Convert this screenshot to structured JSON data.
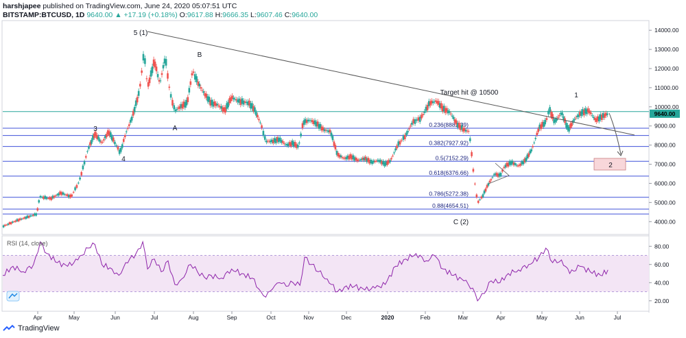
{
  "header": {
    "author": "harshjapee",
    "published_text": " published on TradingView.com, June 24, 2020 05:07:51 UTC",
    "symbol": "BITSTAMP:BTCUSD, 1D",
    "last": "9640.00",
    "change": "▲ +17.19 (+0.18%)",
    "o_label": "O:",
    "o_value": "9617.88",
    "h_label": "H:",
    "h_value": "9666.35",
    "l_label": "L:",
    "l_value": "9607.46",
    "c_label": "C:",
    "c_value": "9640.00"
  },
  "footer": {
    "brand": "TradingView",
    "brand_icon": "tradingview-logo-icon"
  },
  "colors": {
    "up": "#26a69a",
    "down": "#ef5350",
    "hline": "#3f51d9",
    "rsi_line": "#8e24aa",
    "rsi_band": "#f3e5f5"
  },
  "chart_data": [
    {
      "type": "candlestick",
      "y_ticks": [
        "14000.00",
        "13000.00",
        "12000.00",
        "11000.00",
        "10000.00",
        "9000.00",
        "8000.00",
        "7000.00",
        "6000.00",
        "5000.00",
        "4000.00"
      ],
      "ylim": [
        3400,
        14400
      ],
      "x_ticks": [
        "Apr",
        "May",
        "Jun",
        "Jul",
        "Aug",
        "Sep",
        "Oct",
        "Nov",
        "Dec",
        "2020",
        "Feb",
        "Mar",
        "Apr",
        "May",
        "Jun",
        "Jul"
      ],
      "price_label": "9640.00",
      "close_series": [
        {
          "d": 0,
          "v": 3750
        },
        {
          "d": 20,
          "v": 4050
        },
        {
          "d": 50,
          "v": 4400
        },
        {
          "d": 54,
          "v": 5300
        },
        {
          "d": 70,
          "v": 5200
        },
        {
          "d": 85,
          "v": 5500
        },
        {
          "d": 100,
          "v": 5300
        },
        {
          "d": 112,
          "v": 6100
        },
        {
          "d": 125,
          "v": 7800
        },
        {
          "d": 135,
          "v": 8600
        },
        {
          "d": 145,
          "v": 8100
        },
        {
          "d": 155,
          "v": 8700
        },
        {
          "d": 163,
          "v": 8200
        },
        {
          "d": 172,
          "v": 7600
        },
        {
          "d": 180,
          "v": 8600
        },
        {
          "d": 190,
          "v": 9500
        },
        {
          "d": 200,
          "v": 10800
        },
        {
          "d": 207,
          "v": 12900
        },
        {
          "d": 212,
          "v": 11000
        },
        {
          "d": 222,
          "v": 12400
        },
        {
          "d": 230,
          "v": 11200
        },
        {
          "d": 238,
          "v": 12600
        },
        {
          "d": 245,
          "v": 10700
        },
        {
          "d": 252,
          "v": 9800
        },
        {
          "d": 260,
          "v": 10000
        },
        {
          "d": 270,
          "v": 10200
        },
        {
          "d": 278,
          "v": 11900
        },
        {
          "d": 285,
          "v": 11300
        },
        {
          "d": 295,
          "v": 10700
        },
        {
          "d": 305,
          "v": 10200
        },
        {
          "d": 315,
          "v": 10100
        },
        {
          "d": 325,
          "v": 9800
        },
        {
          "d": 335,
          "v": 10500
        },
        {
          "d": 345,
          "v": 10300
        },
        {
          "d": 360,
          "v": 10200
        },
        {
          "d": 368,
          "v": 9900
        },
        {
          "d": 378,
          "v": 9100
        },
        {
          "d": 385,
          "v": 8200
        },
        {
          "d": 395,
          "v": 8200
        },
        {
          "d": 405,
          "v": 8300
        },
        {
          "d": 415,
          "v": 8000
        },
        {
          "d": 425,
          "v": 8100
        },
        {
          "d": 433,
          "v": 7900
        },
        {
          "d": 440,
          "v": 9200
        },
        {
          "d": 450,
          "v": 9300
        },
        {
          "d": 460,
          "v": 9100
        },
        {
          "d": 470,
          "v": 8800
        },
        {
          "d": 480,
          "v": 8700
        },
        {
          "d": 490,
          "v": 7500
        },
        {
          "d": 500,
          "v": 7300
        },
        {
          "d": 510,
          "v": 7400
        },
        {
          "d": 520,
          "v": 7200
        },
        {
          "d": 530,
          "v": 7300
        },
        {
          "d": 540,
          "v": 7100
        },
        {
          "d": 550,
          "v": 7200
        },
        {
          "d": 560,
          "v": 7000
        },
        {
          "d": 568,
          "v": 7200
        },
        {
          "d": 578,
          "v": 8000
        },
        {
          "d": 590,
          "v": 8500
        },
        {
          "d": 600,
          "v": 9200
        },
        {
          "d": 612,
          "v": 9400
        },
        {
          "d": 625,
          "v": 10200
        },
        {
          "d": 635,
          "v": 10300
        },
        {
          "d": 645,
          "v": 9900
        },
        {
          "d": 655,
          "v": 9700
        },
        {
          "d": 665,
          "v": 9100
        },
        {
          "d": 675,
          "v": 8800
        },
        {
          "d": 683,
          "v": 8700
        },
        {
          "d": 690,
          "v": 6300
        },
        {
          "d": 695,
          "v": 5000
        },
        {
          "d": 702,
          "v": 5300
        },
        {
          "d": 710,
          "v": 5900
        },
        {
          "d": 720,
          "v": 6500
        },
        {
          "d": 728,
          "v": 6400
        },
        {
          "d": 735,
          "v": 6900
        },
        {
          "d": 745,
          "v": 7100
        },
        {
          "d": 755,
          "v": 6900
        },
        {
          "d": 765,
          "v": 7200
        },
        {
          "d": 775,
          "v": 7800
        },
        {
          "d": 785,
          "v": 8900
        },
        {
          "d": 795,
          "v": 9200
        },
        {
          "d": 800,
          "v": 9900
        },
        {
          "d": 808,
          "v": 9200
        },
        {
          "d": 818,
          "v": 9700
        },
        {
          "d": 828,
          "v": 8800
        },
        {
          "d": 838,
          "v": 9400
        },
        {
          "d": 848,
          "v": 9700
        },
        {
          "d": 858,
          "v": 9800
        },
        {
          "d": 868,
          "v": 9300
        },
        {
          "d": 878,
          "v": 9500
        },
        {
          "d": 886,
          "v": 9640
        }
      ],
      "horizontal_levels": [
        {
          "label": "0.236(8882.39)",
          "v": 8882.39
        },
        {
          "label": "0.382(7927.92)",
          "v": 7927.92
        },
        {
          "label": "0.5(7152.29)",
          "v": 7152.29
        },
        {
          "label": "0.618(6376.66)",
          "v": 6376.66
        },
        {
          "label": "0.786(5272.38)",
          "v": 5272.38
        },
        {
          "label": "0.88(4654.51)",
          "v": 4654.51
        }
      ],
      "extra_levels": [
        9750,
        8500,
        4400
      ],
      "annotations": [
        "5 (1)",
        "B",
        "3",
        "A",
        "4",
        "Target hit @ 10500",
        "1",
        "C (2)",
        "2"
      ]
    },
    {
      "type": "line",
      "title": "RSI (14, close)",
      "y_ticks": [
        "80.00",
        "60.00",
        "40.00",
        "20.00"
      ],
      "ylim": [
        10,
        90
      ],
      "band": [
        30,
        70
      ],
      "series": [
        {
          "d": 0,
          "v": 48
        },
        {
          "d": 15,
          "v": 58
        },
        {
          "d": 30,
          "v": 52
        },
        {
          "d": 45,
          "v": 60
        },
        {
          "d": 55,
          "v": 85
        },
        {
          "d": 65,
          "v": 72
        },
        {
          "d": 80,
          "v": 62
        },
        {
          "d": 95,
          "v": 58
        },
        {
          "d": 110,
          "v": 65
        },
        {
          "d": 125,
          "v": 78
        },
        {
          "d": 135,
          "v": 82
        },
        {
          "d": 145,
          "v": 60
        },
        {
          "d": 160,
          "v": 55
        },
        {
          "d": 170,
          "v": 48
        },
        {
          "d": 180,
          "v": 62
        },
        {
          "d": 195,
          "v": 72
        },
        {
          "d": 205,
          "v": 85
        },
        {
          "d": 212,
          "v": 55
        },
        {
          "d": 222,
          "v": 66
        },
        {
          "d": 232,
          "v": 52
        },
        {
          "d": 242,
          "v": 64
        },
        {
          "d": 252,
          "v": 38
        },
        {
          "d": 262,
          "v": 44
        },
        {
          "d": 275,
          "v": 60
        },
        {
          "d": 285,
          "v": 52
        },
        {
          "d": 295,
          "v": 46
        },
        {
          "d": 305,
          "v": 48
        },
        {
          "d": 320,
          "v": 45
        },
        {
          "d": 335,
          "v": 55
        },
        {
          "d": 350,
          "v": 50
        },
        {
          "d": 365,
          "v": 45
        },
        {
          "d": 378,
          "v": 30
        },
        {
          "d": 385,
          "v": 24
        },
        {
          "d": 395,
          "v": 33
        },
        {
          "d": 405,
          "v": 40
        },
        {
          "d": 415,
          "v": 36
        },
        {
          "d": 425,
          "v": 40
        },
        {
          "d": 435,
          "v": 37
        },
        {
          "d": 442,
          "v": 68
        },
        {
          "d": 452,
          "v": 60
        },
        {
          "d": 462,
          "v": 52
        },
        {
          "d": 475,
          "v": 44
        },
        {
          "d": 490,
          "v": 30
        },
        {
          "d": 500,
          "v": 35
        },
        {
          "d": 515,
          "v": 36
        },
        {
          "d": 530,
          "v": 32
        },
        {
          "d": 545,
          "v": 34
        },
        {
          "d": 560,
          "v": 38
        },
        {
          "d": 575,
          "v": 58
        },
        {
          "d": 590,
          "v": 66
        },
        {
          "d": 605,
          "v": 72
        },
        {
          "d": 620,
          "v": 64
        },
        {
          "d": 632,
          "v": 70
        },
        {
          "d": 645,
          "v": 55
        },
        {
          "d": 660,
          "v": 48
        },
        {
          "d": 675,
          "v": 42
        },
        {
          "d": 688,
          "v": 34
        },
        {
          "d": 695,
          "v": 20
        },
        {
          "d": 705,
          "v": 28
        },
        {
          "d": 715,
          "v": 42
        },
        {
          "d": 728,
          "v": 40
        },
        {
          "d": 740,
          "v": 50
        },
        {
          "d": 755,
          "v": 54
        },
        {
          "d": 770,
          "v": 60
        },
        {
          "d": 785,
          "v": 68
        },
        {
          "d": 795,
          "v": 78
        },
        {
          "d": 805,
          "v": 62
        },
        {
          "d": 818,
          "v": 65
        },
        {
          "d": 830,
          "v": 50
        },
        {
          "d": 845,
          "v": 58
        },
        {
          "d": 860,
          "v": 52
        },
        {
          "d": 875,
          "v": 48
        },
        {
          "d": 886,
          "v": 54
        }
      ]
    }
  ]
}
